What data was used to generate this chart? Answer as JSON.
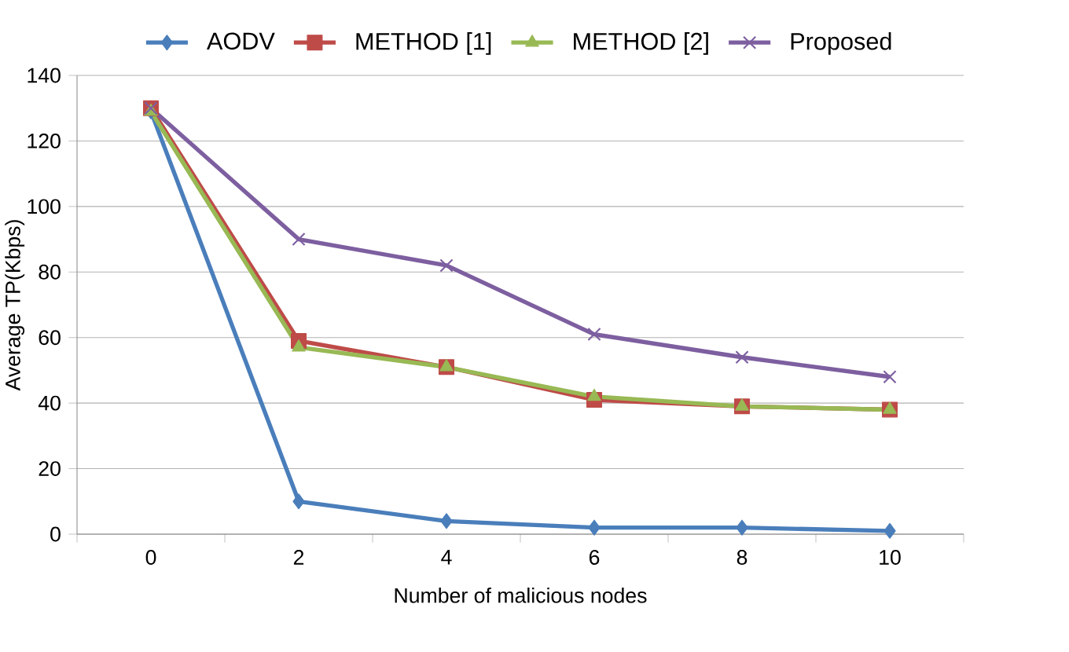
{
  "chart_data": {
    "type": "line",
    "xlabel": "Number of malicious nodes",
    "ylabel": "Average TP(Kbps)",
    "categories": [
      "0",
      "2",
      "4",
      "6",
      "8",
      "10"
    ],
    "ylim": [
      0,
      140
    ],
    "yticks": [
      0,
      20,
      40,
      60,
      80,
      100,
      120,
      140
    ],
    "grid": "y",
    "legend": "top",
    "line_style": "solid",
    "series": [
      {
        "name": "AODV",
        "color": "#4a7ebb",
        "marker": "diamond",
        "values": [
          129,
          10,
          4,
          2,
          2,
          1
        ]
      },
      {
        "name": "METHOD [1]",
        "color": "#be4b48",
        "marker": "square",
        "values": [
          130,
          59,
          51,
          41,
          39,
          38
        ]
      },
      {
        "name": "METHOD [2]",
        "color": "#98b954",
        "marker": "triangle",
        "values": [
          129,
          57,
          51,
          42,
          39,
          38
        ]
      },
      {
        "name": "Proposed",
        "color": "#7d5fa0",
        "marker": "cross",
        "values": [
          130,
          90,
          82,
          61,
          54,
          48
        ]
      }
    ]
  }
}
